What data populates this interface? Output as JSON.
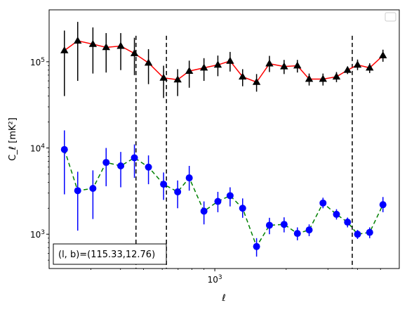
{
  "chart_data": {
    "type": "scatter",
    "title": "",
    "xlabel": "ℓ",
    "ylabel": "C_ℓ [mK²]",
    "x_scale": "log",
    "y_scale": "log",
    "xlim": [
      200,
      6000
    ],
    "ylim": [
      400,
      400000
    ],
    "x_ticks": [
      {
        "value": 1000,
        "label": "10",
        "exp": "3"
      }
    ],
    "y_ticks": [
      {
        "value": 1000,
        "label": "10",
        "exp": "3"
      },
      {
        "value": 10000,
        "label": "10",
        "exp": "4"
      },
      {
        "value": 100000,
        "label": "10",
        "exp": "5"
      }
    ],
    "vlines": [
      465,
      625,
      3800
    ],
    "vline_ymin": 400,
    "vline_ymax": 200000,
    "legend": {
      "position": "top-right",
      "entries": []
    },
    "annotation": {
      "text": "(l, b)=(115.33,12.76)",
      "position": "bottom-left"
    },
    "series": [
      {
        "marker": "triangle",
        "color": "#000000",
        "line_color": "#ff0000",
        "line_style": "solid",
        "points": [
          {
            "x": 232,
            "y": 135000,
            "lo": 40000,
            "hi": 230000
          },
          {
            "x": 264,
            "y": 175000,
            "lo": 60000,
            "hi": 290000
          },
          {
            "x": 306,
            "y": 160000,
            "lo": 73000,
            "hi": 250000
          },
          {
            "x": 348,
            "y": 147000,
            "lo": 75000,
            "hi": 215000
          },
          {
            "x": 401,
            "y": 152000,
            "lo": 80000,
            "hi": 215000
          },
          {
            "x": 458,
            "y": 125000,
            "lo": 70000,
            "hi": 190000
          },
          {
            "x": 525,
            "y": 97000,
            "lo": 55000,
            "hi": 140000
          },
          {
            "x": 608,
            "y": 65000,
            "lo": 38000,
            "hi": 90000
          },
          {
            "x": 697,
            "y": 62000,
            "lo": 40000,
            "hi": 82000
          },
          {
            "x": 780,
            "y": 78000,
            "lo": 50000,
            "hi": 103000
          },
          {
            "x": 900,
            "y": 85000,
            "lo": 60000,
            "hi": 110000
          },
          {
            "x": 1030,
            "y": 92000,
            "lo": 68000,
            "hi": 118000
          },
          {
            "x": 1160,
            "y": 102000,
            "lo": 77000,
            "hi": 130000
          },
          {
            "x": 1310,
            "y": 67000,
            "lo": 52000,
            "hi": 82000
          },
          {
            "x": 1500,
            "y": 58000,
            "lo": 45000,
            "hi": 72000
          },
          {
            "x": 1700,
            "y": 95000,
            "lo": 76000,
            "hi": 117000
          },
          {
            "x": 1960,
            "y": 88000,
            "lo": 72000,
            "hi": 105000
          },
          {
            "x": 2230,
            "y": 90000,
            "lo": 75000,
            "hi": 105000
          },
          {
            "x": 2500,
            "y": 63000,
            "lo": 53000,
            "hi": 73000
          },
          {
            "x": 2860,
            "y": 63000,
            "lo": 53000,
            "hi": 73000
          },
          {
            "x": 3260,
            "y": 67000,
            "lo": 58000,
            "hi": 76000
          },
          {
            "x": 3630,
            "y": 80000,
            "lo": 72000,
            "hi": 88000
          },
          {
            "x": 4000,
            "y": 92000,
            "lo": 80000,
            "hi": 106000
          },
          {
            "x": 4500,
            "y": 85000,
            "lo": 74000,
            "hi": 96000
          },
          {
            "x": 5120,
            "y": 118000,
            "lo": 100000,
            "hi": 138000
          }
        ]
      },
      {
        "marker": "circle",
        "color": "#0000ff",
        "line_color": "#008000",
        "line_style": "dashed",
        "points": [
          {
            "x": 232,
            "y": 9600,
            "lo": 2900,
            "hi": 16000
          },
          {
            "x": 264,
            "y": 3200,
            "lo": 1100,
            "hi": 5300
          },
          {
            "x": 306,
            "y": 3400,
            "lo": 1500,
            "hi": 5500
          },
          {
            "x": 348,
            "y": 6800,
            "lo": 3600,
            "hi": 10000
          },
          {
            "x": 401,
            "y": 6200,
            "lo": 3500,
            "hi": 9000
          },
          {
            "x": 458,
            "y": 7700,
            "lo": 4500,
            "hi": 11000
          },
          {
            "x": 525,
            "y": 6000,
            "lo": 3800,
            "hi": 8200
          },
          {
            "x": 608,
            "y": 3800,
            "lo": 2500,
            "hi": 5200
          },
          {
            "x": 697,
            "y": 3100,
            "lo": 2000,
            "hi": 4200
          },
          {
            "x": 780,
            "y": 4500,
            "lo": 3200,
            "hi": 6200
          },
          {
            "x": 900,
            "y": 1850,
            "lo": 1300,
            "hi": 2400
          },
          {
            "x": 1030,
            "y": 2400,
            "lo": 1800,
            "hi": 3100
          },
          {
            "x": 1160,
            "y": 2800,
            "lo": 2100,
            "hi": 3500
          },
          {
            "x": 1310,
            "y": 2000,
            "lo": 1550,
            "hi": 2600
          },
          {
            "x": 1500,
            "y": 720,
            "lo": 550,
            "hi": 900
          },
          {
            "x": 1700,
            "y": 1270,
            "lo": 1000,
            "hi": 1550
          },
          {
            "x": 1960,
            "y": 1300,
            "lo": 1050,
            "hi": 1570
          },
          {
            "x": 2230,
            "y": 1020,
            "lo": 850,
            "hi": 1200
          },
          {
            "x": 2500,
            "y": 1120,
            "lo": 950,
            "hi": 1300
          },
          {
            "x": 2860,
            "y": 2300,
            "lo": 2000,
            "hi": 2650
          },
          {
            "x": 3260,
            "y": 1700,
            "lo": 1480,
            "hi": 1950
          },
          {
            "x": 3630,
            "y": 1380,
            "lo": 1200,
            "hi": 1560
          },
          {
            "x": 4000,
            "y": 1000,
            "lo": 880,
            "hi": 1120
          },
          {
            "x": 4500,
            "y": 1050,
            "lo": 900,
            "hi": 1200
          },
          {
            "x": 5120,
            "y": 2200,
            "lo": 1800,
            "hi": 2700
          }
        ]
      }
    ]
  }
}
